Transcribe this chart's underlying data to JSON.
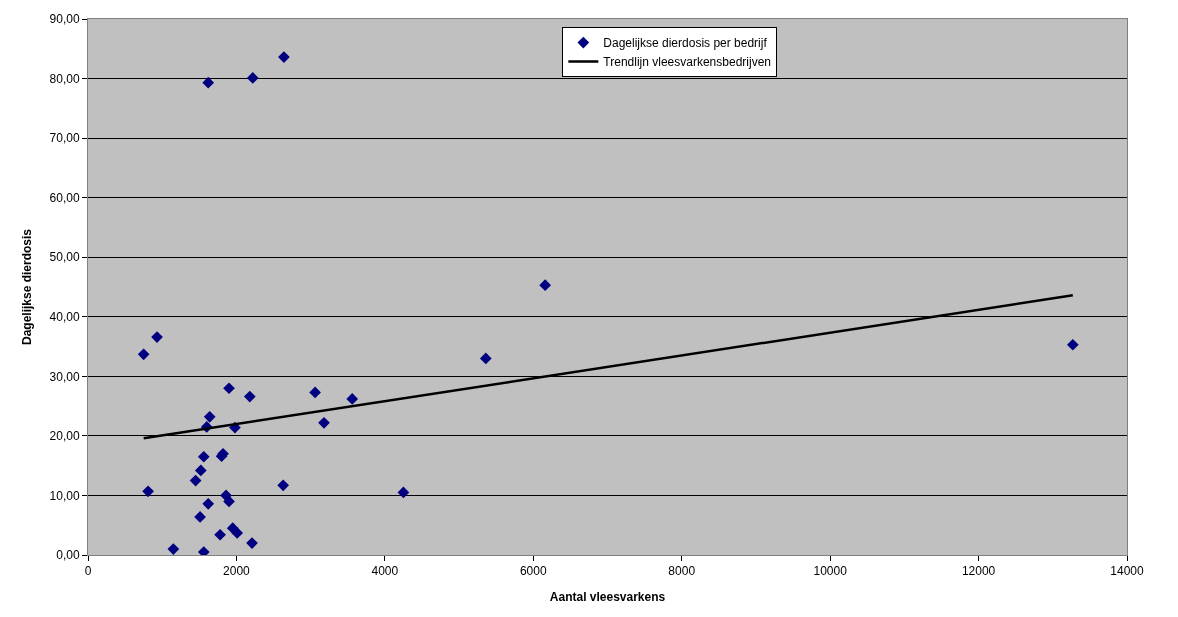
{
  "chart_data": {
    "type": "scatter",
    "xlabel": "Aantal vleesvarkens",
    "ylabel": "Dagelijkse dierdosis",
    "series": [
      {
        "name": "Dagelijkse dierdosis per bedrijf",
        "color": "#000080",
        "marker": "diamond",
        "x": [
          750,
          930,
          810,
          1150,
          1450,
          1510,
          1520,
          1560,
          1560,
          1600,
          1620,
          1640,
          1780,
          1800,
          1820,
          1860,
          1900,
          1900,
          1950,
          1980,
          2010,
          2210,
          2180,
          2630,
          3060,
          3180,
          3560,
          4250,
          5360,
          6160,
          13270,
          1620,
          2220,
          2640
        ],
        "values": [
          33.7,
          36.6,
          10.7,
          1.0,
          12.5,
          6.4,
          14.2,
          16.5,
          0.5,
          21.5,
          8.6,
          23.2,
          3.4,
          16.6,
          17.0,
          10.0,
          9.0,
          28.0,
          4.5,
          21.4,
          3.7,
          2.0,
          26.6,
          11.7,
          27.3,
          22.2,
          26.2,
          10.5,
          33.0,
          45.3,
          35.3,
          79.3,
          80.1,
          83.6
        ]
      },
      {
        "name": "Trendlijn vleesvarkensbedrijven",
        "type": "line",
        "color": "#000000",
        "marker": "none",
        "line_style": "solid",
        "x": [
          750,
          13270
        ],
        "values": [
          19.6,
          43.6
        ]
      }
    ],
    "xlim": [
      0,
      14000
    ],
    "xticks": [
      0,
      2000,
      4000,
      6000,
      8000,
      10000,
      12000,
      14000
    ],
    "ylim": [
      0,
      90
    ],
    "yticks": [
      {
        "value": 0,
        "label": "0,00"
      },
      {
        "value": 10,
        "label": "10,00"
      },
      {
        "value": 20,
        "label": "20,00"
      },
      {
        "value": 30,
        "label": "30,00"
      },
      {
        "value": 40,
        "label": "40,00"
      },
      {
        "value": 50,
        "label": "50,00"
      },
      {
        "value": 60,
        "label": "60,00"
      },
      {
        "value": 70,
        "label": "70,00"
      },
      {
        "value": 80,
        "label": "80,00"
      },
      {
        "value": 90,
        "label": "90,00"
      }
    ],
    "grid": "y",
    "legend": "top"
  }
}
